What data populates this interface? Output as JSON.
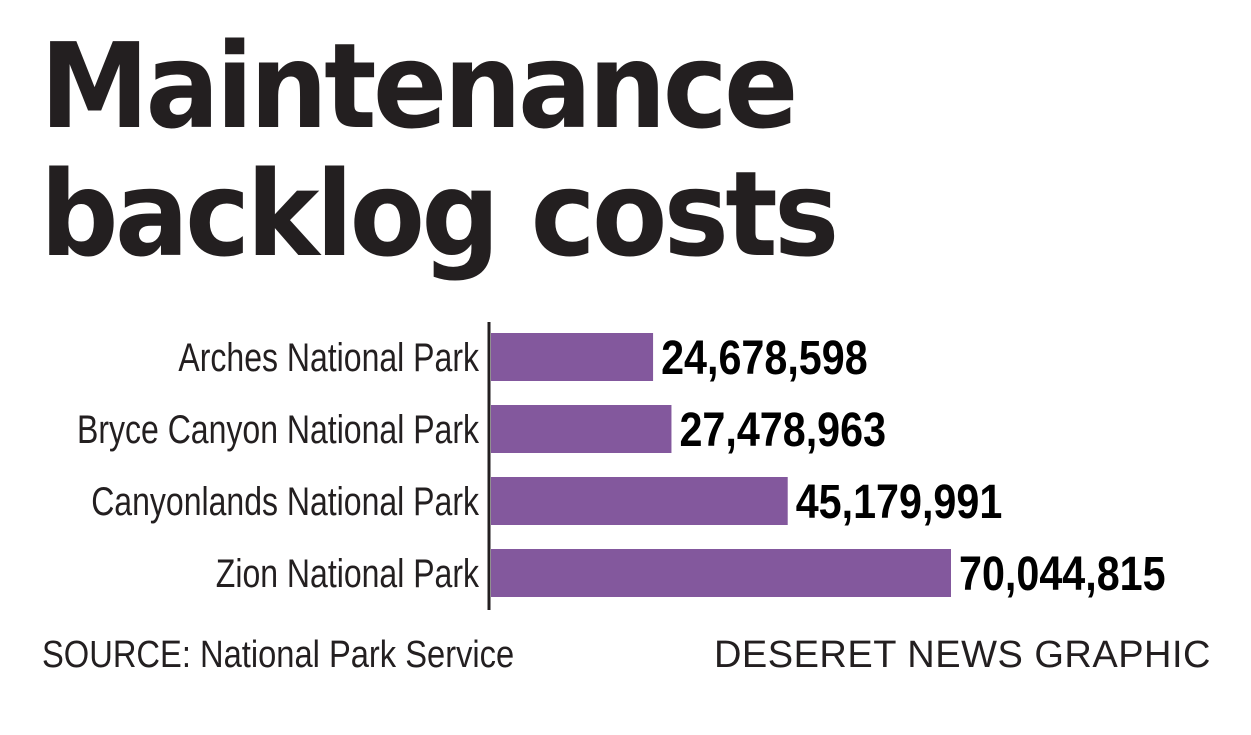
{
  "title_line1": "Maintenance",
  "title_line2": "backlog costs",
  "source": "SOURCE: National Park Service",
  "credit": "DESERET NEWS GRAPHIC",
  "colors": {
    "bar": "#83589d",
    "axis": "#231f20",
    "text": "#231f20"
  },
  "chart_data": {
    "type": "bar",
    "orientation": "horizontal",
    "categories": [
      "Arches National Park",
      "Bryce Canyon National Park",
      "Canyonlands National Park",
      "Zion National Park"
    ],
    "values": [
      24678598,
      27478963,
      45179991,
      70044815
    ],
    "value_labels": [
      "24,678,598",
      "27,478,963",
      "45,179,991",
      "70,044,815"
    ],
    "grid": false
  }
}
